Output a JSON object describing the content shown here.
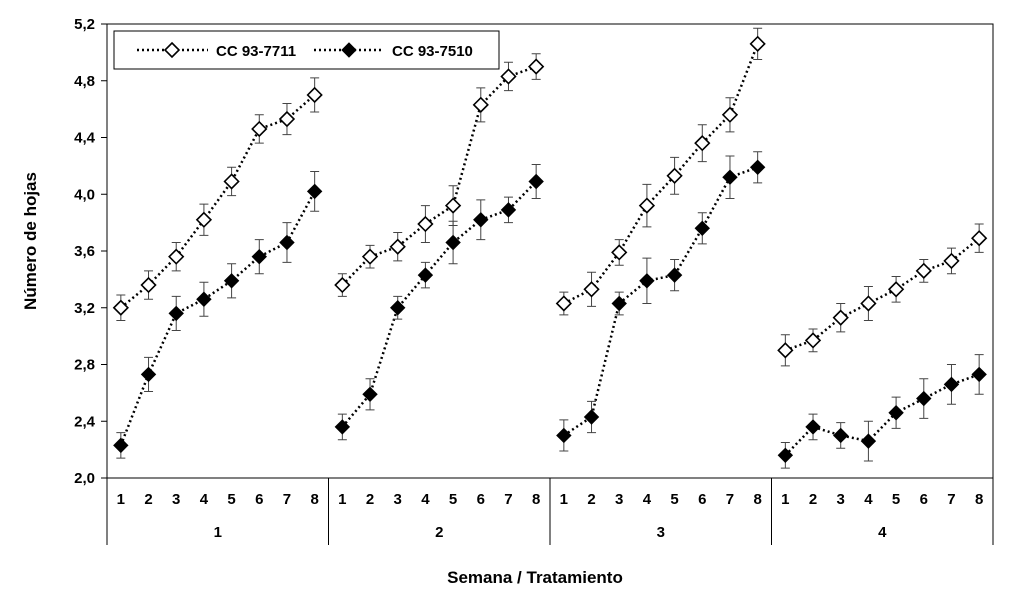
{
  "chart_data": {
    "type": "line",
    "ylabel": "Número de hojas",
    "xlabel": "Semana / Tratamiento",
    "ylim": [
      2.0,
      5.2
    ],
    "yticks": [
      "2,0",
      "2,4",
      "2,8",
      "3,2",
      "3,6",
      "4,0",
      "4,4",
      "4,8",
      "5,2"
    ],
    "ytick_values": [
      2.0,
      2.4,
      2.8,
      3.2,
      3.6,
      4.0,
      4.4,
      4.8,
      5.2
    ],
    "groups": [
      {
        "label": "1",
        "weeks": [
          "1",
          "2",
          "3",
          "4",
          "5",
          "6",
          "7",
          "8"
        ]
      },
      {
        "label": "2",
        "weeks": [
          "1",
          "2",
          "3",
          "4",
          "5",
          "6",
          "7",
          "8"
        ]
      },
      {
        "label": "3",
        "weeks": [
          "1",
          "2",
          "3",
          "4",
          "5",
          "6",
          "7",
          "8"
        ]
      },
      {
        "label": "4",
        "weeks": [
          "1",
          "2",
          "3",
          "4",
          "5",
          "6",
          "7",
          "8"
        ]
      }
    ],
    "legend_position": "top-left",
    "grid": false,
    "series": [
      {
        "name": "CC 93-7711",
        "marker": "open-diamond",
        "values": [
          [
            3.2,
            3.36,
            3.56,
            3.82,
            4.09,
            4.46,
            4.53,
            4.7
          ],
          [
            3.36,
            3.56,
            3.63,
            3.79,
            3.92,
            4.63,
            4.83,
            4.9
          ],
          [
            3.23,
            3.33,
            3.59,
            3.92,
            4.13,
            4.36,
            4.56,
            5.06
          ],
          [
            2.9,
            2.97,
            3.13,
            3.23,
            3.33,
            3.46,
            3.53,
            3.69
          ]
        ],
        "errors": [
          [
            0.09,
            0.1,
            0.1,
            0.11,
            0.1,
            0.1,
            0.11,
            0.12
          ],
          [
            0.08,
            0.08,
            0.1,
            0.13,
            0.14,
            0.12,
            0.1,
            0.09
          ],
          [
            0.08,
            0.12,
            0.09,
            0.15,
            0.13,
            0.13,
            0.12,
            0.11
          ],
          [
            0.11,
            0.08,
            0.1,
            0.12,
            0.09,
            0.08,
            0.09,
            0.1
          ]
        ]
      },
      {
        "name": "CC 93-7510",
        "marker": "filled-diamond",
        "values": [
          [
            2.23,
            2.73,
            3.16,
            3.26,
            3.39,
            3.56,
            3.66,
            4.02
          ],
          [
            2.36,
            2.59,
            3.2,
            3.43,
            3.66,
            3.82,
            3.89,
            4.09
          ],
          [
            2.3,
            2.43,
            3.23,
            3.39,
            3.43,
            3.76,
            4.12,
            4.19
          ],
          [
            2.16,
            2.36,
            2.3,
            2.26,
            2.46,
            2.56,
            2.66,
            2.73
          ]
        ],
        "errors": [
          [
            0.09,
            0.12,
            0.12,
            0.12,
            0.12,
            0.12,
            0.14,
            0.14
          ],
          [
            0.09,
            0.11,
            0.08,
            0.09,
            0.15,
            0.14,
            0.09,
            0.12
          ],
          [
            0.11,
            0.11,
            0.08,
            0.16,
            0.11,
            0.11,
            0.15,
            0.11
          ],
          [
            0.09,
            0.09,
            0.09,
            0.14,
            0.11,
            0.14,
            0.14,
            0.14
          ]
        ]
      }
    ]
  }
}
